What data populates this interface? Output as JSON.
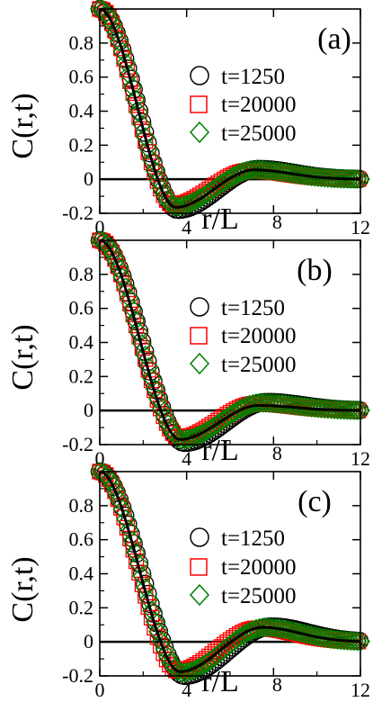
{
  "chart_data": [
    {
      "type": "scatter",
      "panel_label": "(a)",
      "xlabel": "r/L",
      "ylabel": "C(r,t)",
      "xlim": [
        0,
        12
      ],
      "ylim": [
        -0.2,
        1.0
      ],
      "xticks": [
        0,
        4,
        8,
        12
      ],
      "yticks": [
        -0.2,
        0,
        0.2,
        0.4,
        0.6,
        0.8
      ],
      "legend_position": "top-right",
      "zero_line": true,
      "series": [
        {
          "name": "t=1250",
          "marker": "circle",
          "color": "#000000",
          "min": [
            3.6,
            -0.18
          ],
          "max": [
            7.3,
            0.06
          ]
        },
        {
          "name": "t=20000",
          "marker": "square",
          "color": "#ff0000",
          "min": [
            3.4,
            -0.15
          ],
          "max": [
            6.9,
            0.05
          ]
        },
        {
          "name": "t=25000",
          "marker": "diamond",
          "color": "#008000",
          "min": [
            3.5,
            -0.16
          ],
          "max": [
            7.1,
            0.055
          ]
        }
      ],
      "fit": {
        "min": [
          3.5,
          -0.165
        ],
        "max": [
          7.1,
          0.055
        ]
      }
    },
    {
      "type": "scatter",
      "panel_label": "(b)",
      "xlabel": "r/L",
      "ylabel": "C(r,t)",
      "xlim": [
        0,
        12
      ],
      "ylim": [
        -0.2,
        1.0
      ],
      "xticks": [
        0,
        4,
        8,
        12
      ],
      "yticks": [
        -0.2,
        0,
        0.2,
        0.4,
        0.6,
        0.8
      ],
      "legend_position": "top-right",
      "zero_line": true,
      "series": [
        {
          "name": "t=1250",
          "marker": "circle",
          "color": "#000000",
          "min": [
            3.9,
            -0.19
          ],
          "max": [
            7.7,
            0.05
          ]
        },
        {
          "name": "t=20000",
          "marker": "square",
          "color": "#ff0000",
          "min": [
            3.7,
            -0.16
          ],
          "max": [
            7.2,
            0.04
          ]
        },
        {
          "name": "t=25000",
          "marker": "diamond",
          "color": "#008000",
          "min": [
            3.8,
            -0.17
          ],
          "max": [
            7.4,
            0.045
          ]
        }
      ],
      "fit": {
        "min": [
          3.7,
          -0.17
        ],
        "max": [
          7.3,
          0.03
        ]
      }
    },
    {
      "type": "scatter",
      "panel_label": "(c)",
      "xlabel": "r/L",
      "ylabel": "C(r,t)",
      "xlim": [
        0,
        12
      ],
      "ylim": [
        -0.2,
        1.0
      ],
      "xticks": [
        0,
        4,
        8,
        12
      ],
      "yticks": [
        -0.2,
        0,
        0.2,
        0.4,
        0.6,
        0.8
      ],
      "legend_position": "top-right",
      "zero_line": true,
      "series": [
        {
          "name": "t=1250",
          "marker": "circle",
          "color": "#000000",
          "min": [
            3.9,
            -0.2
          ],
          "max": [
            7.9,
            0.09
          ]
        },
        {
          "name": "t=20000",
          "marker": "square",
          "color": "#ff0000",
          "min": [
            3.6,
            -0.17
          ],
          "max": [
            7.3,
            0.08
          ]
        },
        {
          "name": "t=25000",
          "marker": "diamond",
          "color": "#008000",
          "min": [
            3.8,
            -0.18
          ],
          "max": [
            7.6,
            0.085
          ]
        }
      ],
      "fit": {
        "min": [
          3.7,
          -0.175
        ],
        "max": [
          7.5,
          0.085
        ]
      }
    }
  ]
}
